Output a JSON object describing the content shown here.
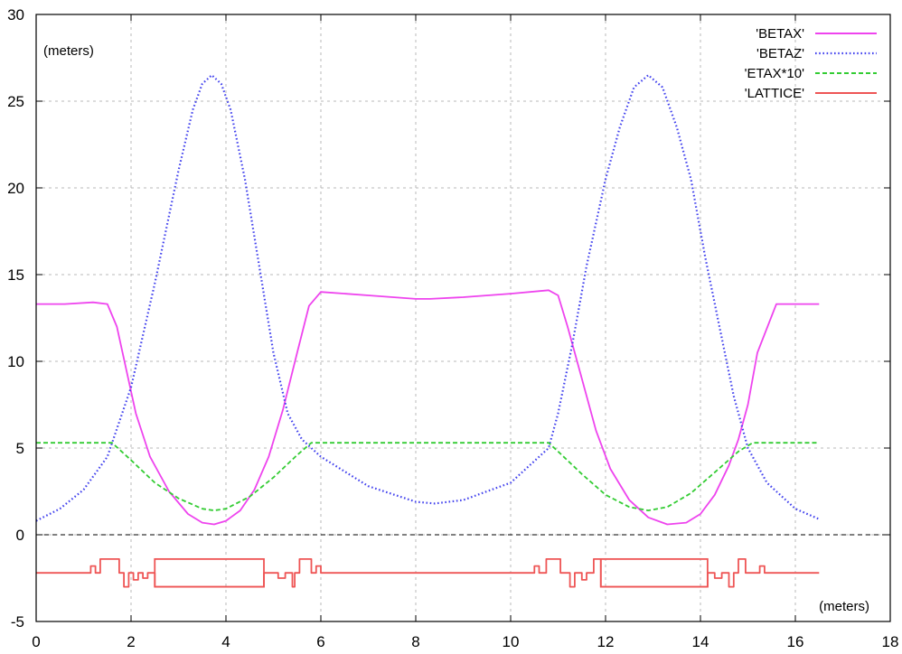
{
  "chart_data": {
    "type": "line",
    "title": "",
    "ylabel": "(meters)",
    "xlabel": "(meters)",
    "xlim": [
      0,
      18
    ],
    "ylim": [
      -5,
      30
    ],
    "xticks": [
      0,
      2,
      4,
      6,
      8,
      10,
      12,
      14,
      16,
      18
    ],
    "yticks": [
      -5,
      0,
      5,
      10,
      15,
      20,
      25,
      30
    ],
    "grid": true,
    "zero_line": true,
    "legend_position": "top-right",
    "series": [
      {
        "name": "'BETAX'",
        "color": "#ee44ee",
        "style": "solid",
        "x": [
          0,
          0.6,
          1.2,
          1.5,
          1.7,
          1.9,
          2.1,
          2.4,
          2.8,
          3.2,
          3.5,
          3.75,
          4.0,
          4.3,
          4.6,
          4.9,
          5.2,
          5.5,
          5.75,
          6.0,
          7.0,
          8.0,
          8.3,
          9.0,
          10.0,
          10.8,
          11.0,
          11.2,
          11.5,
          11.8,
          12.1,
          12.5,
          12.9,
          13.3,
          13.7,
          14.0,
          14.3,
          14.6,
          14.8,
          15.0,
          15.2,
          15.6,
          16.0,
          16.5
        ],
        "y": [
          13.3,
          13.3,
          13.4,
          13.3,
          12.0,
          9.5,
          7.0,
          4.5,
          2.5,
          1.2,
          0.7,
          0.6,
          0.8,
          1.4,
          2.6,
          4.5,
          7.2,
          10.5,
          13.2,
          14.0,
          13.8,
          13.6,
          13.6,
          13.7,
          13.9,
          14.1,
          13.8,
          12.0,
          9.0,
          6.0,
          3.8,
          2.0,
          1.0,
          0.6,
          0.7,
          1.2,
          2.3,
          4.0,
          5.5,
          7.5,
          10.5,
          13.3,
          13.3,
          13.3
        ]
      },
      {
        "name": "'BETAZ'",
        "color": "#4444ee",
        "style": "dotted",
        "x": [
          0,
          0.5,
          1.0,
          1.5,
          2.0,
          2.5,
          3.0,
          3.3,
          3.5,
          3.7,
          3.9,
          4.1,
          4.4,
          4.7,
          5.0,
          5.3,
          5.6,
          6.0,
          7.0,
          8.0,
          8.4,
          9.0,
          10.0,
          10.8,
          11.0,
          11.3,
          11.6,
          12.0,
          12.3,
          12.6,
          12.9,
          13.2,
          13.5,
          13.8,
          14.1,
          14.4,
          14.7,
          15.0,
          15.4,
          16.0,
          16.5
        ],
        "y": [
          0.8,
          1.5,
          2.6,
          4.5,
          8.5,
          14.5,
          21.0,
          24.5,
          26.0,
          26.5,
          26.0,
          24.5,
          20.5,
          15.5,
          10.5,
          7.0,
          5.5,
          4.5,
          2.8,
          1.9,
          1.8,
          2.0,
          3.0,
          5.0,
          7.0,
          11.0,
          15.5,
          20.5,
          23.5,
          25.8,
          26.5,
          25.8,
          23.5,
          20.5,
          16.0,
          12.0,
          8.0,
          5.0,
          3.0,
          1.5,
          0.9
        ]
      },
      {
        "name": "'ETAX*10'",
        "color": "#33cc33",
        "style": "dashed",
        "x": [
          0,
          1.6,
          2.0,
          2.5,
          3.0,
          3.5,
          3.75,
          4.0,
          4.5,
          5.0,
          5.5,
          5.8,
          6.5,
          8.0,
          10.0,
          10.8,
          11.0,
          11.5,
          12.0,
          12.5,
          12.9,
          13.3,
          13.8,
          14.3,
          14.8,
          15.1,
          16.5
        ],
        "y": [
          5.3,
          5.3,
          4.3,
          3.0,
          2.1,
          1.5,
          1.4,
          1.5,
          2.2,
          3.3,
          4.6,
          5.3,
          5.3,
          5.3,
          5.3,
          5.3,
          4.8,
          3.5,
          2.3,
          1.6,
          1.4,
          1.6,
          2.4,
          3.6,
          4.8,
          5.3,
          5.3
        ]
      },
      {
        "name": "'LATTICE'",
        "color": "#ee5555",
        "style": "solid",
        "x": [
          0,
          1.15,
          1.15,
          1.25,
          1.25,
          1.35,
          1.35,
          1.75,
          1.75,
          1.85,
          1.85,
          1.95,
          1.95,
          2.05,
          2.05,
          2.15,
          2.15,
          2.25,
          2.25,
          2.35,
          2.35,
          2.5,
          2.5,
          4.8,
          4.8,
          5.1,
          5.1,
          5.25,
          5.25,
          5.4,
          5.4,
          5.45,
          5.45,
          5.55,
          5.55,
          5.8,
          5.8,
          5.9,
          5.9,
          6.0,
          6.0,
          10.5,
          10.5,
          10.6,
          10.6,
          10.75,
          10.75,
          11.05,
          11.05,
          11.25,
          11.25,
          11.35,
          11.35,
          11.5,
          11.5,
          11.6,
          11.6,
          11.75,
          11.75,
          11.9,
          11.9,
          14.15,
          14.15,
          14.3,
          14.3,
          14.45,
          14.45,
          14.6,
          14.6,
          14.7,
          14.7,
          14.8,
          14.8,
          14.95,
          14.95,
          15.25,
          15.25,
          15.35,
          15.35,
          15.45,
          15.45,
          16.5
        ],
        "y": [
          -2.2,
          -2.2,
          -1.8,
          -1.8,
          -2.2,
          -2.2,
          -1.4,
          -1.4,
          -2.2,
          -2.2,
          -3.0,
          -3.0,
          -2.2,
          -2.2,
          -2.6,
          -2.6,
          -2.2,
          -2.2,
          -2.5,
          -2.5,
          -2.2,
          -2.2,
          -3.0,
          -3.0,
          -2.2,
          -2.2,
          -2.5,
          -2.5,
          -2.2,
          -2.2,
          -3.0,
          -3.0,
          -2.2,
          -2.2,
          -1.4,
          -1.4,
          -2.2,
          -2.2,
          -1.8,
          -1.8,
          -2.2,
          -2.2,
          -1.8,
          -1.8,
          -2.2,
          -2.2,
          -1.4,
          -1.4,
          -2.2,
          -2.2,
          -3.0,
          -3.0,
          -2.2,
          -2.2,
          -2.6,
          -2.6,
          -2.2,
          -2.2,
          -1.4,
          -1.4,
          -3.0,
          -3.0,
          -2.2,
          -2.2,
          -2.5,
          -2.5,
          -2.2,
          -2.2,
          -3.0,
          -3.0,
          -2.2,
          -2.2,
          -1.4,
          -1.4,
          -2.2,
          -2.2,
          -1.8,
          -1.8,
          -2.2,
          -2.2,
          -2.2,
          -2.2
        ],
        "boxes": [
          {
            "x0": 2.5,
            "x1": 4.8,
            "y0": -3.0,
            "y1": -1.4
          },
          {
            "x0": 11.9,
            "x1": 14.15,
            "y0": -3.0,
            "y1": -1.4
          }
        ]
      }
    ]
  }
}
